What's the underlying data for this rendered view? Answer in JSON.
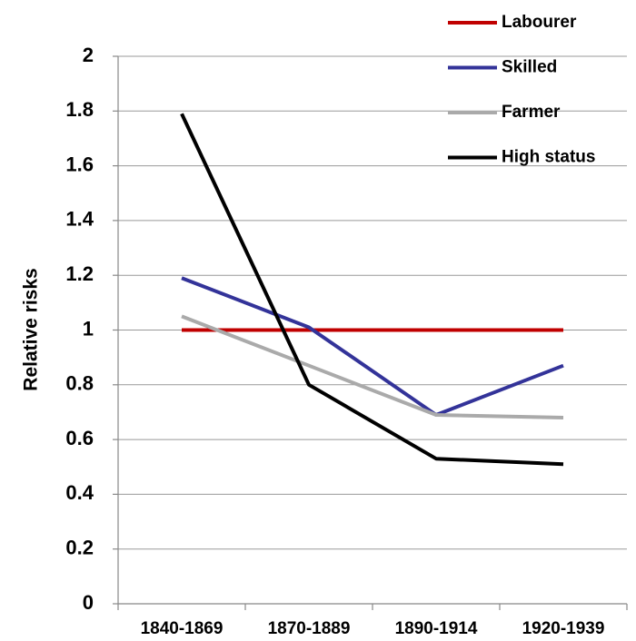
{
  "chart_data": {
    "type": "line",
    "y_label": "Relative risks",
    "categories": [
      "1840-1869",
      "1870-1889",
      "1890-1914",
      "1920-1939"
    ],
    "series": [
      {
        "name": "Labourer",
        "color": "#c00000",
        "values": [
          1,
          1,
          1,
          1
        ]
      },
      {
        "name": "Skilled",
        "color": "#333399",
        "values": [
          1.19,
          1.01,
          0.69,
          0.87
        ]
      },
      {
        "name": "Farmer",
        "color": "#aaaaaa",
        "values": [
          1.05,
          0.87,
          0.69,
          0.68
        ]
      },
      {
        "name": "High status",
        "color": "#000000",
        "values": [
          1.79,
          0.8,
          0.53,
          0.51
        ]
      }
    ],
    "ylim": [
      0,
      2
    ],
    "yticks": [
      0,
      0.2,
      0.4,
      0.6,
      0.8,
      1,
      1.2,
      1.4,
      1.6,
      1.8,
      2
    ],
    "grid": true,
    "legend": "top-right"
  }
}
